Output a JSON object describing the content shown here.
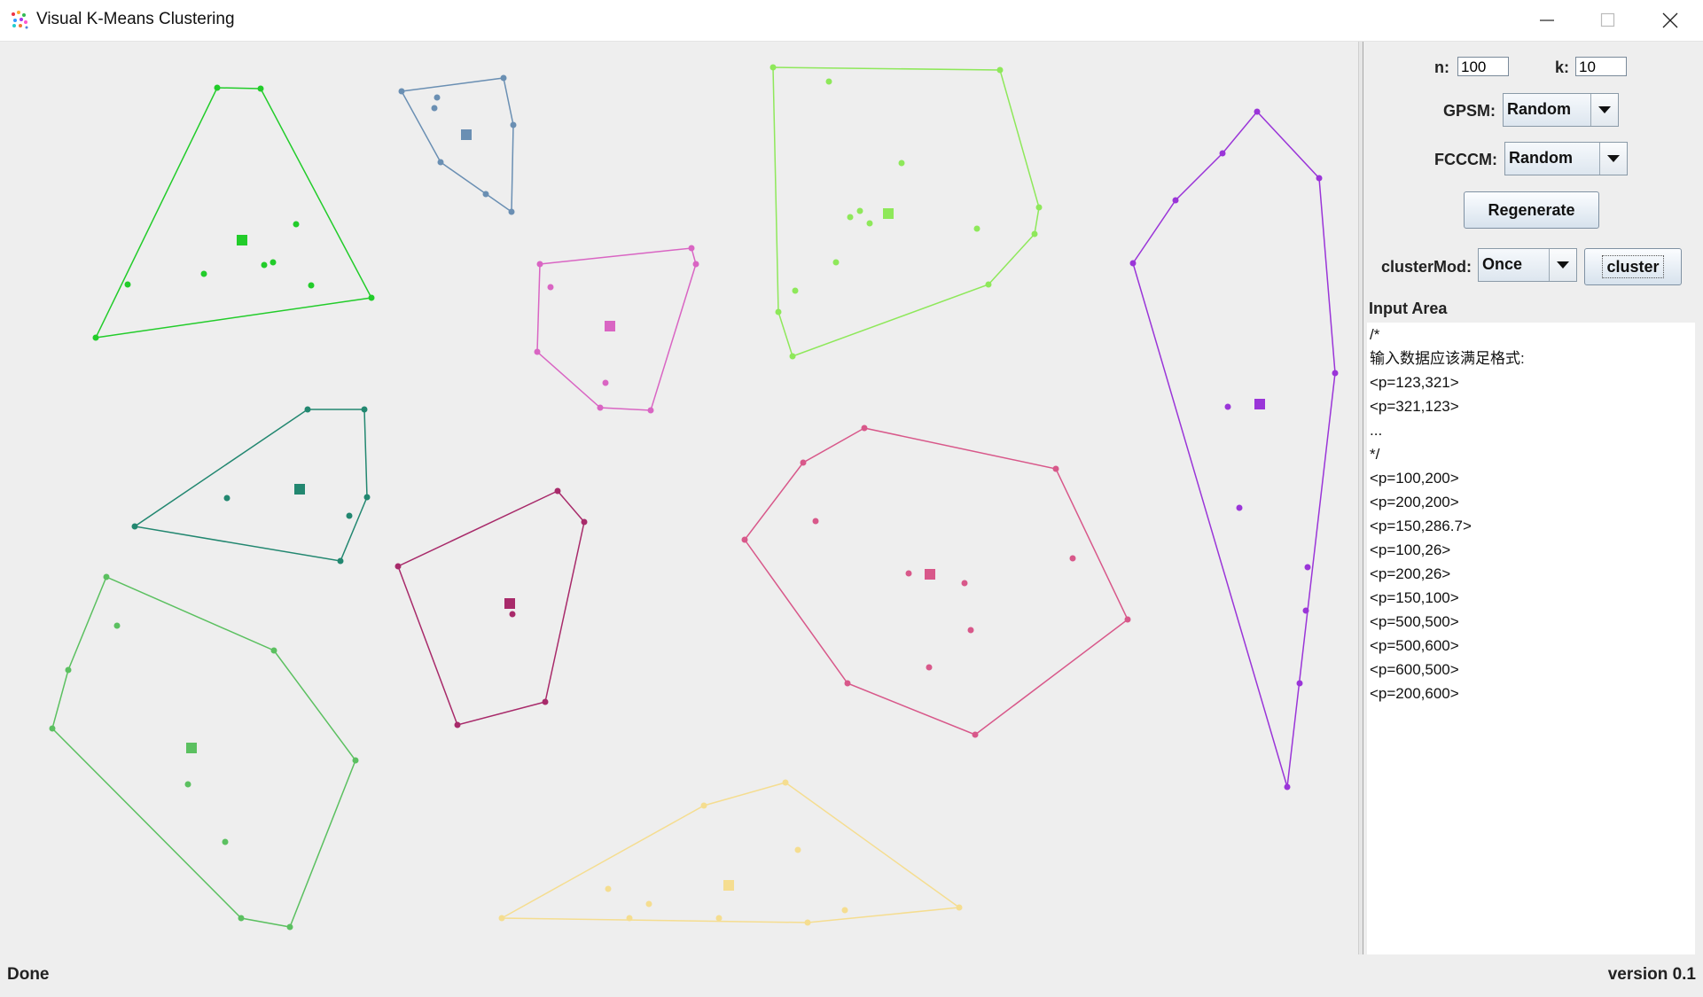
{
  "window": {
    "title": "Visual K-Means Clustering",
    "icon": "scatter-app-icon"
  },
  "controls": {
    "n_label": "n:",
    "n_value": "100",
    "k_label": "k:",
    "k_value": "10",
    "gpsm_label": "GPSM:",
    "gpsm_selected": "Random",
    "fcccm_label": "FCCCM:",
    "fcccm_selected": "Random",
    "regenerate_label": "Regenerate",
    "clustermod_label": "clusterMod:",
    "clustermod_selected": "Once",
    "cluster_label": "cluster"
  },
  "input_area": {
    "title": "Input Area",
    "lines": [
      "/*",
      "输入数据应该满足格式:",
      "<p=123,321>",
      "<p=321,123>",
      "...",
      "*/",
      "<p=100,200>",
      "<p=200,200>",
      "<p=150,286.7>",
      "<p=100,26>",
      "<p=200,26>",
      "<p=150,100>",
      "<p=500,500>",
      "<p=500,600>",
      "<p=600,500>",
      "<p=200,600>"
    ]
  },
  "status": {
    "left": "Done",
    "right": "version 0.1"
  },
  "clusters": [
    {
      "color": "#22cc2a",
      "centroid": [
        273,
        271
      ],
      "hull": [
        [
          245,
          99
        ],
        [
          294,
          100
        ],
        [
          419,
          336
        ],
        [
          108,
          381
        ]
      ],
      "points": [
        [
          334,
          253
        ],
        [
          308,
          296
        ],
        [
          298,
          299
        ],
        [
          230,
          309
        ],
        [
          351,
          322
        ],
        [
          144,
          321
        ]
      ]
    },
    {
      "color": "#6a8fb3",
      "centroid": [
        526,
        152
      ],
      "hull": [
        [
          453,
          103
        ],
        [
          568,
          88
        ],
        [
          579,
          141
        ],
        [
          577,
          239
        ],
        [
          497,
          183
        ]
      ],
      "points": [
        [
          493,
          110
        ],
        [
          490,
          122
        ],
        [
          548,
          219
        ]
      ]
    },
    {
      "color": "#8ee85a",
      "centroid": [
        1002,
        241
      ],
      "hull": [
        [
          872,
          76
        ],
        [
          1128,
          79
        ],
        [
          1172,
          234
        ],
        [
          1167,
          264
        ],
        [
          1115,
          321
        ],
        [
          894,
          402
        ],
        [
          878,
          352
        ]
      ],
      "points": [
        [
          935,
          92
        ],
        [
          1017,
          184
        ],
        [
          1102,
          258
        ],
        [
          959,
          245
        ],
        [
          970,
          238
        ],
        [
          981,
          252
        ],
        [
          943,
          296
        ],
        [
          897,
          328
        ]
      ]
    },
    {
      "color": "#d965c3",
      "centroid": [
        688,
        368
      ],
      "hull": [
        [
          609,
          298
        ],
        [
          780,
          280
        ],
        [
          785,
          298
        ],
        [
          734,
          463
        ],
        [
          677,
          460
        ],
        [
          606,
          397
        ]
      ],
      "points": [
        [
          621,
          324
        ],
        [
          683,
          432
        ]
      ]
    },
    {
      "color": "#9a35d8",
      "centroid": [
        1421,
        456
      ],
      "hull": [
        [
          1418,
          126
        ],
        [
          1488,
          201
        ],
        [
          1506,
          421
        ],
        [
          1452,
          888
        ],
        [
          1278,
          297
        ],
        [
          1326,
          226
        ],
        [
          1379,
          173
        ]
      ],
      "points": [
        [
          1385,
          459
        ],
        [
          1398,
          573
        ],
        [
          1475,
          640
        ],
        [
          1473,
          689
        ],
        [
          1466,
          771
        ]
      ]
    },
    {
      "color": "#228770",
      "centroid": [
        338,
        552
      ],
      "hull": [
        [
          347,
          462
        ],
        [
          411,
          462
        ],
        [
          414,
          561
        ],
        [
          384,
          633
        ],
        [
          152,
          594
        ]
      ],
      "points": [
        [
          256,
          562
        ],
        [
          394,
          582
        ]
      ]
    },
    {
      "color": "#a82a6a",
      "centroid": [
        575,
        681
      ],
      "hull": [
        [
          449,
          639
        ],
        [
          629,
          554
        ],
        [
          659,
          589
        ],
        [
          615,
          792
        ],
        [
          516,
          818
        ]
      ],
      "points": [
        [
          578,
          693
        ]
      ]
    },
    {
      "color": "#d8588a",
      "centroid": [
        1049,
        648
      ],
      "hull": [
        [
          975,
          483
        ],
        [
          1191,
          529
        ],
        [
          1272,
          699
        ],
        [
          1100,
          829
        ],
        [
          956,
          771
        ],
        [
          840,
          609
        ],
        [
          906,
          522
        ]
      ],
      "points": [
        [
          920,
          588
        ],
        [
          1210,
          630
        ],
        [
          1025,
          647
        ],
        [
          1088,
          658
        ],
        [
          1095,
          711
        ],
        [
          1048,
          753
        ]
      ]
    },
    {
      "color": "#5bc060",
      "centroid": [
        216,
        844
      ],
      "hull": [
        [
          120,
          651
        ],
        [
          309,
          734
        ],
        [
          401,
          858
        ],
        [
          327,
          1046
        ],
        [
          272,
          1036
        ],
        [
          59,
          822
        ],
        [
          77,
          756
        ]
      ],
      "points": [
        [
          132,
          706
        ],
        [
          212,
          885
        ],
        [
          254,
          950
        ]
      ]
    },
    {
      "color": "#f5dd90",
      "centroid": [
        822,
        999
      ],
      "hull": [
        [
          886,
          883
        ],
        [
          1082,
          1024
        ],
        [
          911,
          1041
        ],
        [
          566,
          1036
        ],
        [
          794,
          909
        ]
      ],
      "points": [
        [
          900,
          959
        ],
        [
          686,
          1003
        ],
        [
          732,
          1020
        ],
        [
          953,
          1027
        ],
        [
          710,
          1036
        ],
        [
          811,
          1036
        ]
      ]
    }
  ]
}
